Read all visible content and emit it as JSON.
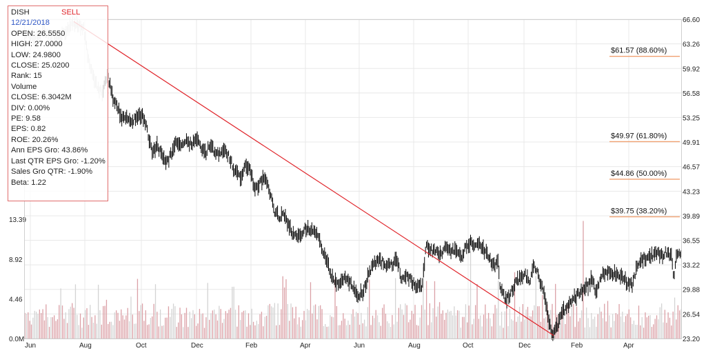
{
  "info": {
    "ticker": "DISH",
    "signal": "SELL",
    "date": "12/21/2018",
    "lines": [
      "OPEN: 26.5550",
      "HIGH: 27.0000",
      "LOW: 24.9800",
      "CLOSE: 25.0200",
      "Rank: 15",
      "Volume",
      "CLOSE: 6.3042M",
      "DIV: 0.00%",
      "PE: 9.58",
      "EPS: 0.82",
      "ROE: 20.26%",
      "Ann EPS Gro: 43.86%",
      "Last QTR EPS Gro: -1.20%",
      "Sales Gro QTR: -1.90%",
      "Beta: 1.22"
    ]
  },
  "colors": {
    "price": "#000000",
    "price_faded": "#c4c4c4",
    "trendline": "#e0252b",
    "fib_line": "#f0a070",
    "volume_red": "#dba0a6",
    "volume_gray": "#d3d3d3",
    "grid": "#e8e8e8",
    "frame": "#c9c9c9",
    "signal": "#e0252b",
    "date": "#2c55c5"
  },
  "chart_data": {
    "type": "line",
    "subtype": "ohlc-price-with-volume",
    "x_ticks": [
      "Jun",
      "Aug",
      "Oct",
      "Dec",
      "Feb",
      "Apr",
      "Jun",
      "Aug",
      "Oct",
      "Dec",
      "Feb",
      "Apr"
    ],
    "y_ticks": [
      "66.60",
      "63.26",
      "59.92",
      "56.58",
      "53.25",
      "49.91",
      "46.57",
      "43.23",
      "39.89",
      "36.55",
      "33.22",
      "29.88",
      "26.54",
      "23.20"
    ],
    "ylim": [
      23.2,
      66.6
    ],
    "volume_ticks": [
      "13.39",
      "8.92",
      "4.46",
      "0.0M"
    ],
    "volume_ylim_millions": [
      0,
      13.39
    ],
    "price_series": [
      {
        "t": 0,
        "v": 64.5
      },
      {
        "t": 2,
        "v": 64.0
      },
      {
        "t": 4,
        "v": 65.2
      },
      {
        "t": 6,
        "v": 63.5
      },
      {
        "t": 8,
        "v": 64.8
      },
      {
        "t": 10,
        "v": 66.3
      },
      {
        "t": 12,
        "v": 65.5
      },
      {
        "t": 13,
        "v": 61.0
      },
      {
        "t": 14,
        "v": 59.0
      },
      {
        "t": 15,
        "v": 57.0
      },
      {
        "t": 16,
        "v": 56.5
      },
      {
        "t": 16.5,
        "v": 58.5
      },
      {
        "t": 17,
        "v": 58.5
      },
      {
        "t": 18,
        "v": 56.0
      },
      {
        "t": 19,
        "v": 54.5
      },
      {
        "t": 20,
        "v": 53.0
      },
      {
        "t": 21,
        "v": 53.3
      },
      {
        "t": 22,
        "v": 52.6
      },
      {
        "t": 23,
        "v": 53.5
      },
      {
        "t": 24,
        "v": 53.6
      },
      {
        "t": 25,
        "v": 51.5
      },
      {
        "t": 26,
        "v": 48.5
      },
      {
        "t": 27,
        "v": 49.3
      },
      {
        "t": 28,
        "v": 48.0
      },
      {
        "t": 29,
        "v": 47.0
      },
      {
        "t": 30,
        "v": 48.5
      },
      {
        "t": 31,
        "v": 50.0
      },
      {
        "t": 32,
        "v": 49.5
      },
      {
        "t": 33,
        "v": 50.2
      },
      {
        "t": 34,
        "v": 49.5
      },
      {
        "t": 35,
        "v": 50.5
      },
      {
        "t": 36,
        "v": 49.0
      },
      {
        "t": 37,
        "v": 48.5
      },
      {
        "t": 38,
        "v": 49.8
      },
      {
        "t": 39,
        "v": 48.0
      },
      {
        "t": 40,
        "v": 48.5
      },
      {
        "t": 41,
        "v": 49.0
      },
      {
        "t": 42,
        "v": 47.3
      },
      {
        "t": 43,
        "v": 46.0
      },
      {
        "t": 44,
        "v": 45.0
      },
      {
        "t": 45,
        "v": 47.0
      },
      {
        "t": 46,
        "v": 46.0
      },
      {
        "t": 47,
        "v": 43.5
      },
      {
        "t": 48,
        "v": 44.5
      },
      {
        "t": 49,
        "v": 45.0
      },
      {
        "t": 50,
        "v": 43.0
      },
      {
        "t": 51,
        "v": 40.5
      },
      {
        "t": 52,
        "v": 39.5
      },
      {
        "t": 53,
        "v": 40.0
      },
      {
        "t": 54,
        "v": 38.3
      },
      {
        "t": 55,
        "v": 37.0
      },
      {
        "t": 56,
        "v": 37.3
      },
      {
        "t": 57,
        "v": 38.0
      },
      {
        "t": 58,
        "v": 38.3
      },
      {
        "t": 59,
        "v": 37.6
      },
      {
        "t": 60,
        "v": 37.0
      },
      {
        "t": 61,
        "v": 34.8
      },
      {
        "t": 62,
        "v": 33.0
      },
      {
        "t": 63,
        "v": 31.0
      },
      {
        "t": 64,
        "v": 30.5
      },
      {
        "t": 65,
        "v": 31.5
      },
      {
        "t": 66,
        "v": 31.0
      },
      {
        "t": 67,
        "v": 30.0
      },
      {
        "t": 68,
        "v": 29.0
      },
      {
        "t": 69,
        "v": 29.5
      },
      {
        "t": 70,
        "v": 31.5
      },
      {
        "t": 71,
        "v": 33.2
      },
      {
        "t": 72,
        "v": 33.8
      },
      {
        "t": 73,
        "v": 33.6
      },
      {
        "t": 74,
        "v": 33.0
      },
      {
        "t": 75,
        "v": 33.2
      },
      {
        "t": 76,
        "v": 34.0
      },
      {
        "t": 77,
        "v": 31.0
      },
      {
        "t": 78,
        "v": 32.0
      },
      {
        "t": 79,
        "v": 30.8
      },
      {
        "t": 80,
        "v": 30.5
      },
      {
        "t": 81,
        "v": 30.0
      },
      {
        "t": 82,
        "v": 36.0
      },
      {
        "t": 83,
        "v": 35.2
      },
      {
        "t": 84,
        "v": 35.0
      },
      {
        "t": 85,
        "v": 34.5
      },
      {
        "t": 86,
        "v": 35.5
      },
      {
        "t": 87,
        "v": 34.8
      },
      {
        "t": 88,
        "v": 35.3
      },
      {
        "t": 89,
        "v": 34.0
      },
      {
        "t": 90,
        "v": 35.5
      },
      {
        "t": 91,
        "v": 36.2
      },
      {
        "t": 92,
        "v": 35.8
      },
      {
        "t": 93,
        "v": 36.0
      },
      {
        "t": 94,
        "v": 35.0
      },
      {
        "t": 95,
        "v": 34.0
      },
      {
        "t": 96,
        "v": 33.0
      },
      {
        "t": 96.5,
        "v": 34.3
      },
      {
        "t": 97,
        "v": 30.5
      },
      {
        "t": 98,
        "v": 28.5
      },
      {
        "t": 99,
        "v": 29.0
      },
      {
        "t": 100,
        "v": 30.5
      },
      {
        "t": 101,
        "v": 31.5
      },
      {
        "t": 102,
        "v": 32.0
      },
      {
        "t": 103,
        "v": 31.0
      },
      {
        "t": 104,
        "v": 33.0
      },
      {
        "t": 105,
        "v": 31.5
      },
      {
        "t": 106,
        "v": 29.5
      },
      {
        "t": 107,
        "v": 25.5
      },
      {
        "t": 107.5,
        "v": 23.8
      },
      {
        "t": 108,
        "v": 23.6
      },
      {
        "t": 109,
        "v": 25.5
      },
      {
        "t": 110,
        "v": 27.0
      },
      {
        "t": 111,
        "v": 28.0
      },
      {
        "t": 112,
        "v": 28.5
      },
      {
        "t": 113,
        "v": 29.2
      },
      {
        "t": 114,
        "v": 29.8
      },
      {
        "t": 115,
        "v": 30.3
      },
      {
        "t": 115.5,
        "v": 31.0
      },
      {
        "t": 116,
        "v": 31.5
      },
      {
        "t": 116.5,
        "v": 28.8
      },
      {
        "t": 117,
        "v": 30.5
      },
      {
        "t": 118,
        "v": 31.8
      },
      {
        "t": 119,
        "v": 32.5
      },
      {
        "t": 120,
        "v": 32.0
      },
      {
        "t": 121,
        "v": 32.0
      },
      {
        "t": 122,
        "v": 31.7
      },
      {
        "t": 123,
        "v": 30.8
      },
      {
        "t": 124,
        "v": 30.5
      },
      {
        "t": 125,
        "v": 33.0
      },
      {
        "t": 126,
        "v": 33.8
      },
      {
        "t": 127,
        "v": 34.3
      },
      {
        "t": 128,
        "v": 34.5
      },
      {
        "t": 129,
        "v": 34.7
      },
      {
        "t": 130,
        "v": 34.4
      },
      {
        "t": 131,
        "v": 35.0
      },
      {
        "t": 132,
        "v": 34.5
      },
      {
        "t": 132.5,
        "v": 31.5
      },
      {
        "t": 133,
        "v": 34.8
      },
      {
        "t": 134,
        "v": 35.0
      }
    ],
    "faded_until_t": 16,
    "trendline": {
      "from": {
        "t": 10,
        "v": 66.3
      },
      "to": {
        "t": 108,
        "v": 23.6
      }
    },
    "fib_levels": [
      {
        "label": "$61.57 (88.60%)",
        "value": 61.57
      },
      {
        "label": "$49.97 (61.80%)",
        "value": 49.97
      },
      {
        "label": "$44.86 (50.00%)",
        "value": 44.86
      },
      {
        "label": "$39.75 (38.20%)",
        "value": 39.75
      }
    ],
    "volume_spikes_millions": [
      {
        "t": 91,
        "v": 9.8
      },
      {
        "t": 114,
        "v": 13.2
      },
      {
        "t": 132.5,
        "v": 4.6
      }
    ]
  }
}
